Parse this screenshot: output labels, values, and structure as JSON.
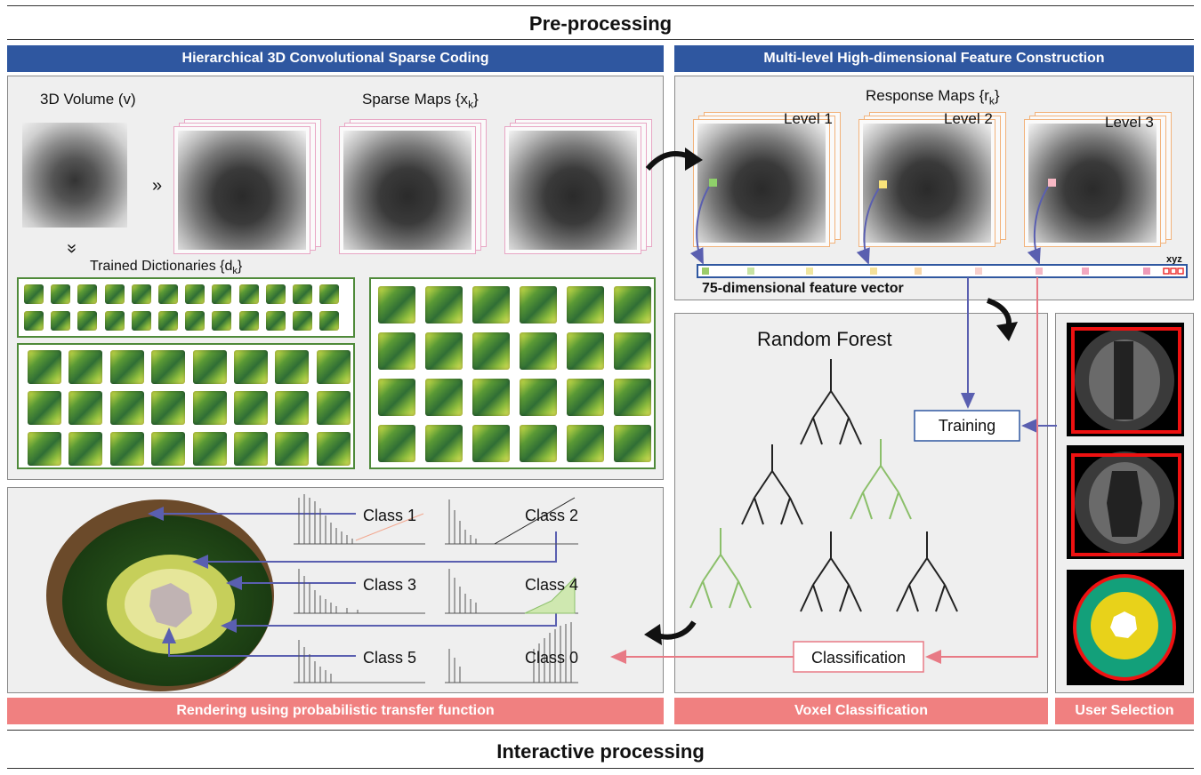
{
  "titles": {
    "top": "Pre-processing",
    "bottom": "Interactive processing"
  },
  "bars": {
    "hcsc": "Hierarchical 3D Convolutional Sparse Coding",
    "mhfc": "Multi-level High-dimensional Feature Construction",
    "render": "Rendering using probabilistic transfer function",
    "voxel": "Voxel Classification",
    "user": "User Selection"
  },
  "labels": {
    "volume": "3D Volume (v)",
    "sparse": "Sparse Maps {x",
    "sparse_sub": "k",
    "dict": "Trained Dictionaries {d",
    "dict_sub": "k",
    "response": "Response Maps {r",
    "response_sub": "k",
    "level1": "Level 1",
    "level2": "Level 2",
    "level3": "Level 3",
    "xyz": "xyz",
    "feature": "75-dimensional  feature vector",
    "forest": "Random Forest",
    "training": "Training",
    "classification": "Classification",
    "arrows": "»",
    "arrows_down": "»",
    "close_brace": "}"
  },
  "classes": [
    "Class 1",
    "Class 2",
    "Class 3",
    "Class 4",
    "Class 5",
    "Class 0"
  ],
  "colors": {
    "blue_bar": "#2f57a0",
    "pink_bar": "#f08080",
    "blue_line": "#5a5fb0",
    "pink_line": "#e87a85",
    "green_border": "#4f8a3a"
  }
}
